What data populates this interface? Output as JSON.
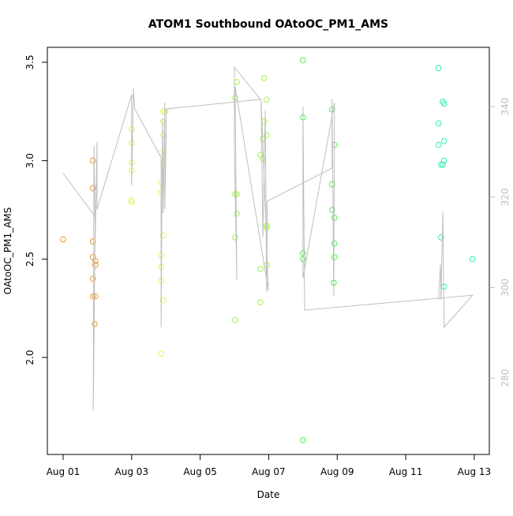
{
  "chart_data": {
    "type": "scatter",
    "title": "ATOM1 Southbound OAtoOC_PM1_AMS",
    "x_label": "Date",
    "y_label": "OAtoOC_PM1_AMS",
    "xlim": [
      0.54,
      13.44
    ],
    "xticks": [
      {
        "value": 1,
        "label": "Aug 01"
      },
      {
        "value": 3,
        "label": "Aug 03"
      },
      {
        "value": 5,
        "label": "Aug 05"
      },
      {
        "value": 7,
        "label": "Aug 07"
      },
      {
        "value": 9,
        "label": "Aug 09"
      },
      {
        "value": 11,
        "label": "Aug 11"
      },
      {
        "value": 13,
        "label": "Aug 13"
      }
    ],
    "ylim": [
      1.507,
      3.576
    ],
    "yticks": [
      {
        "value": 2,
        "label": "2.0"
      },
      2.5,
      {
        "value": 3,
        "label": "3.0"
      },
      3.5
    ],
    "y2lim": [
      263.1,
      353.1
    ],
    "y2ticks": [
      280,
      300,
      320,
      340
    ],
    "y2_color": "#bebebe",
    "series": [
      {
        "mode": "markers",
        "color": "#f0962e",
        "x": [
          1.0,
          1.87,
          1.87,
          1.87,
          1.87,
          1.94,
          1.94,
          1.87,
          1.87,
          1.94,
          1.92
        ],
        "values": [
          2.6,
          3.0,
          2.86,
          2.59,
          2.51,
          2.49,
          2.47,
          2.4,
          2.31,
          2.31,
          2.17
        ]
      },
      {
        "mode": "markers",
        "color": "#e3f25a",
        "x": [
          3.0,
          3.0,
          3.0,
          3.0,
          3.0,
          3.0,
          3.86,
          3.86,
          3.86,
          3.86,
          3.86,
          3.86,
          3.86,
          3.92,
          3.92,
          3.92,
          3.92,
          3.92,
          3.92,
          3.97
        ],
        "values": [
          3.16,
          3.09,
          2.99,
          2.95,
          2.8,
          2.79,
          3.04,
          2.89,
          2.84,
          2.52,
          2.46,
          2.39,
          2.02,
          3.25,
          3.2,
          3.13,
          2.99,
          2.62,
          2.29,
          3.25
        ]
      },
      {
        "mode": "markers",
        "color": "#a4f250",
        "x": [
          6.02,
          6.02,
          6.02,
          6.02,
          6.07,
          6.07,
          6.07,
          6.76,
          6.76,
          6.76,
          6.83,
          6.83,
          6.87,
          6.87,
          6.94,
          6.94,
          6.94,
          6.94,
          6.94
        ],
        "values": [
          3.32,
          2.83,
          2.61,
          2.19,
          3.4,
          2.83,
          2.73,
          3.03,
          2.45,
          2.28,
          3.11,
          3.01,
          3.42,
          3.2,
          3.31,
          3.13,
          2.67,
          2.66,
          2.47
        ]
      },
      {
        "mode": "markers",
        "color": "#4cf04c",
        "x": [
          8.0,
          8.0,
          8.0,
          8.0,
          8.0,
          8.85,
          8.85,
          8.85,
          8.9,
          8.92,
          8.92,
          8.92,
          8.92
        ],
        "values": [
          3.51,
          3.22,
          2.53,
          2.5,
          1.58,
          3.26,
          2.88,
          2.75,
          2.38,
          3.08,
          2.71,
          2.58,
          2.51
        ]
      },
      {
        "mode": "markers",
        "color": "#30f0b4",
        "x": [
          11.96,
          11.96,
          11.96,
          12.03,
          12.03,
          12.08,
          12.08,
          12.12,
          12.12,
          12.12,
          12.12,
          12.95
        ],
        "values": [
          3.47,
          3.19,
          3.08,
          2.61,
          2.98,
          3.3,
          2.98,
          3.29,
          3.1,
          3.0,
          2.36,
          2.5
        ]
      },
      {
        "mode": "lines",
        "axis": "y2",
        "color": "#bebebe",
        "x": [
          1.0,
          1.94,
          1.88,
          1.9,
          1.94,
          1.99,
          1.99,
          3.0,
          3.0,
          3.05,
          3.09,
          3.86,
          3.86,
          3.9,
          3.92,
          3.97,
          3.97,
          4.02,
          6.76,
          6.0,
          6.0,
          6.07,
          6.02,
          6.99,
          6.78,
          6.83,
          6.9,
          6.94,
          6.96,
          8.85,
          8.85,
          8.9,
          8.92,
          8.0,
          8.0,
          8.05,
          12.95,
          12.12,
          12.08,
          12.03,
          12.01,
          11.96
        ],
        "values": [
          325.3,
          315.6,
          272.8,
          331.3,
          311.2,
          332.2,
          317.3,
          342.6,
          322.6,
          344.0,
          339.5,
          328.7,
          291.2,
          337.4,
          316.5,
          340.9,
          317.3,
          339.5,
          341.6,
          348.7,
          330.4,
          301.6,
          344.4,
          299.4,
          341.6,
          311.2,
          339.1,
          299.0,
          319.1,
          326.4,
          341.7,
          298.1,
          340.9,
          302.1,
          340.0,
          295.0,
          298.3,
          291.2,
          316.8,
          297.3,
          305.1,
          297.3
        ]
      }
    ]
  }
}
